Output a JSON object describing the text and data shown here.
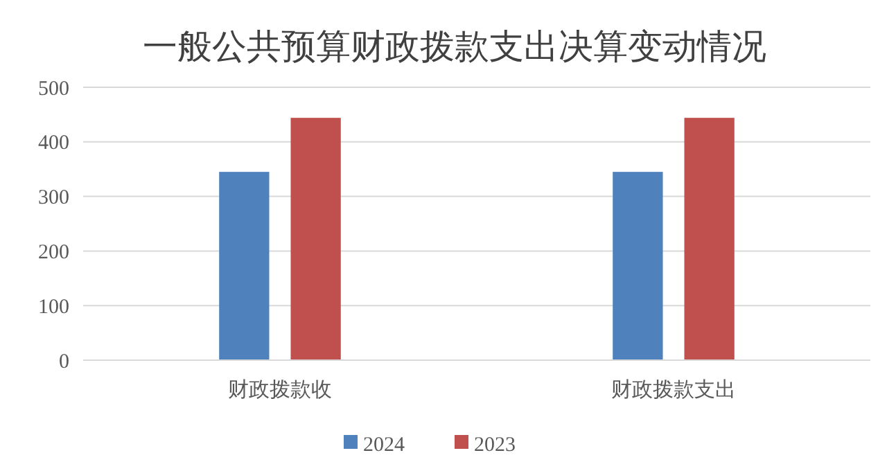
{
  "chart_data": {
    "type": "bar",
    "title": "一般公共预算财政拨款支出决算变动情况",
    "categories": [
      "财政拨款收",
      "财政拨款支出"
    ],
    "series": [
      {
        "name": "2024",
        "color": "#4f81bd",
        "values": [
          345,
          345
        ]
      },
      {
        "name": "2023",
        "color": "#c0504d",
        "values": [
          444,
          444
        ]
      }
    ],
    "ylim": [
      0,
      500
    ],
    "yticks": [
      0,
      100,
      200,
      300,
      400,
      500
    ],
    "grid": "y",
    "legend": "bottom"
  }
}
